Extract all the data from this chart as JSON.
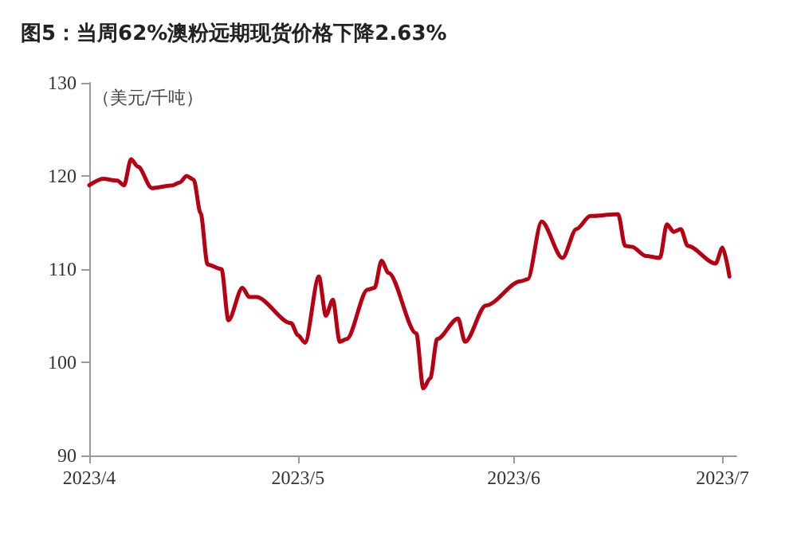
{
  "chart_data": {
    "type": "line",
    "title": "图5：当周62%澳粉远期现货价格下降2.63%",
    "ylabel": "（美元/千吨）",
    "x": [
      "2023-04-01",
      "2023-04-03",
      "2023-04-05",
      "2023-04-06",
      "2023-04-07",
      "2023-04-08",
      "2023-04-10",
      "2023-04-13",
      "2023-04-14",
      "2023-04-15",
      "2023-04-16",
      "2023-04-17",
      "2023-04-18",
      "2023-04-20",
      "2023-04-21",
      "2023-04-23",
      "2023-04-24",
      "2023-04-25",
      "2023-04-30",
      "2023-05-01",
      "2023-05-02",
      "2023-05-04",
      "2023-05-05",
      "2023-05-06",
      "2023-05-07",
      "2023-05-08",
      "2023-05-11",
      "2023-05-12",
      "2023-05-13",
      "2023-05-14",
      "2023-05-18",
      "2023-05-19",
      "2023-05-20",
      "2023-05-21",
      "2023-05-24",
      "2023-05-25",
      "2023-05-28",
      "2023-06-02",
      "2023-06-03",
      "2023-06-05",
      "2023-06-08",
      "2023-06-10",
      "2023-06-12",
      "2023-06-16",
      "2023-06-17",
      "2023-06-18",
      "2023-06-20",
      "2023-06-22",
      "2023-06-23",
      "2023-06-24",
      "2023-06-25",
      "2023-06-26",
      "2023-06-30",
      "2023-07-01",
      "2023-07-02"
    ],
    "series": [
      {
        "color": "#b80012",
        "values": [
          119.0,
          119.7,
          119.5,
          119.0,
          121.8,
          121.0,
          118.7,
          119.0,
          119.3,
          120.0,
          119.6,
          116.0,
          110.5,
          110.0,
          104.5,
          108.0,
          107.0,
          107.0,
          104.2,
          102.9,
          102.1,
          109.2,
          105.0,
          106.7,
          102.2,
          102.5,
          107.8,
          108.0,
          110.9,
          109.6,
          103.1,
          97.2,
          98.3,
          102.5,
          104.7,
          102.2,
          106.1,
          108.7,
          108.9,
          115.1,
          111.2,
          114.3,
          115.7,
          115.9,
          112.5,
          112.4,
          111.4,
          111.2,
          114.8,
          114.0,
          114.3,
          112.5,
          110.6,
          112.3,
          109.2
        ]
      }
    ],
    "xlim": [
      "2023-04-01",
      "2023-07-03"
    ],
    "xticks": [
      {
        "value": "2023-04-01",
        "label": "2023/4"
      },
      {
        "value": "2023-05-01",
        "label": "2023/5"
      },
      {
        "value": "2023-06-01",
        "label": "2023/6"
      },
      {
        "value": "2023-07-01",
        "label": "2023/7"
      }
    ],
    "ylim": [
      90,
      130
    ],
    "yticks": [
      90,
      100,
      110,
      120,
      130
    ],
    "grid": false,
    "marker": "none",
    "line_style": "solid"
  }
}
